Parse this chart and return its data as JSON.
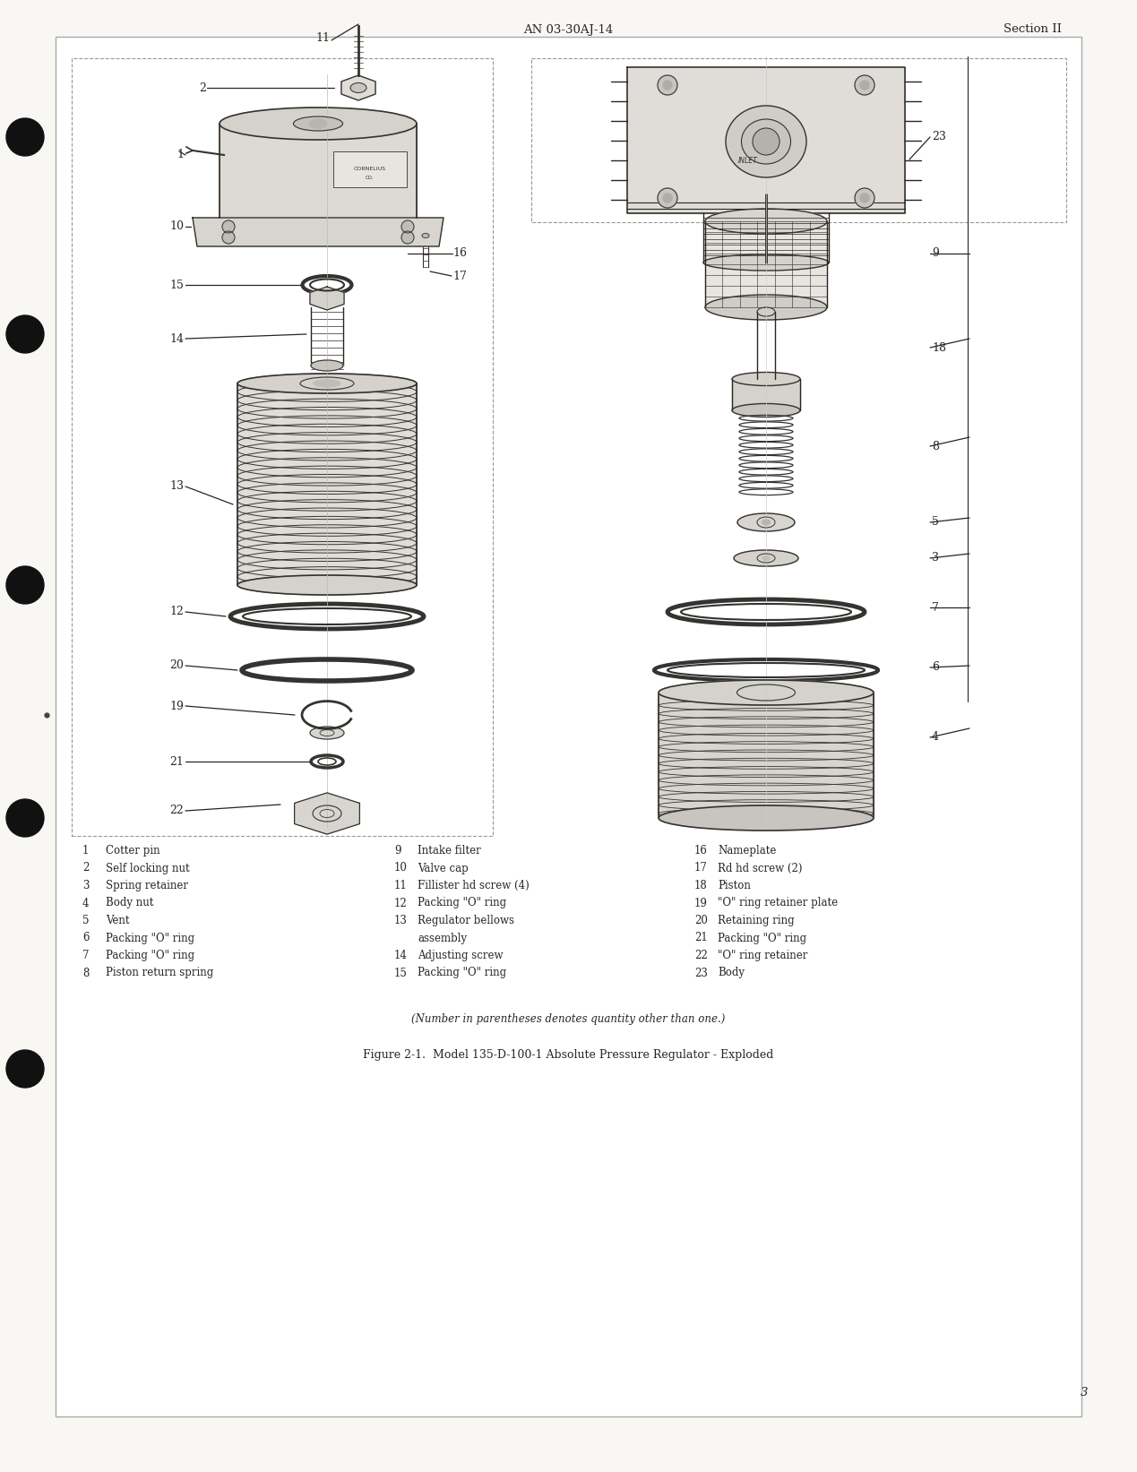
{
  "page_bg": "#f8f7f4",
  "inner_bg": "#ffffff",
  "tc": "#2a2520",
  "header_center": "AN 03-30AJ-14",
  "header_right": "Section II",
  "page_number": "3",
  "figure_caption": "Figure 2-1.  Model 135-D-100-1 Absolute Pressure Regulator - Exploded",
  "note_text": "(Number in parentheses denotes quantity other than one.)",
  "parts_col1": [
    [
      "1",
      "Cotter pin"
    ],
    [
      "2",
      "Self locking nut"
    ],
    [
      "3",
      "Spring retainer"
    ],
    [
      "4",
      "Body nut"
    ],
    [
      "5",
      "Vent"
    ],
    [
      "6",
      "Packing \"O\" ring"
    ],
    [
      "7",
      "Packing \"O\" ring"
    ],
    [
      "8",
      "Piston return spring"
    ]
  ],
  "parts_col2": [
    [
      "9",
      "Intake filter"
    ],
    [
      "10",
      "Valve cap"
    ],
    [
      "11",
      "Fillister hd screw (4)"
    ],
    [
      "12",
      "Packing \"O\" ring"
    ],
    [
      "13",
      "Regulator bellows"
    ],
    [
      "",
      "assembly"
    ],
    [
      "14",
      "Adjusting screw"
    ],
    [
      "15",
      "Packing \"O\" ring"
    ]
  ],
  "parts_col3": [
    [
      "16",
      "Nameplate"
    ],
    [
      "17",
      "Rd hd screw (2)"
    ],
    [
      "18",
      "Piston"
    ],
    [
      "19",
      "\"O\" ring retainer plate"
    ],
    [
      "20",
      "Retaining ring"
    ],
    [
      "21",
      "Packing \"O\" ring"
    ],
    [
      "22",
      "\"O\" ring retainer"
    ],
    [
      "23",
      "Body"
    ]
  ]
}
